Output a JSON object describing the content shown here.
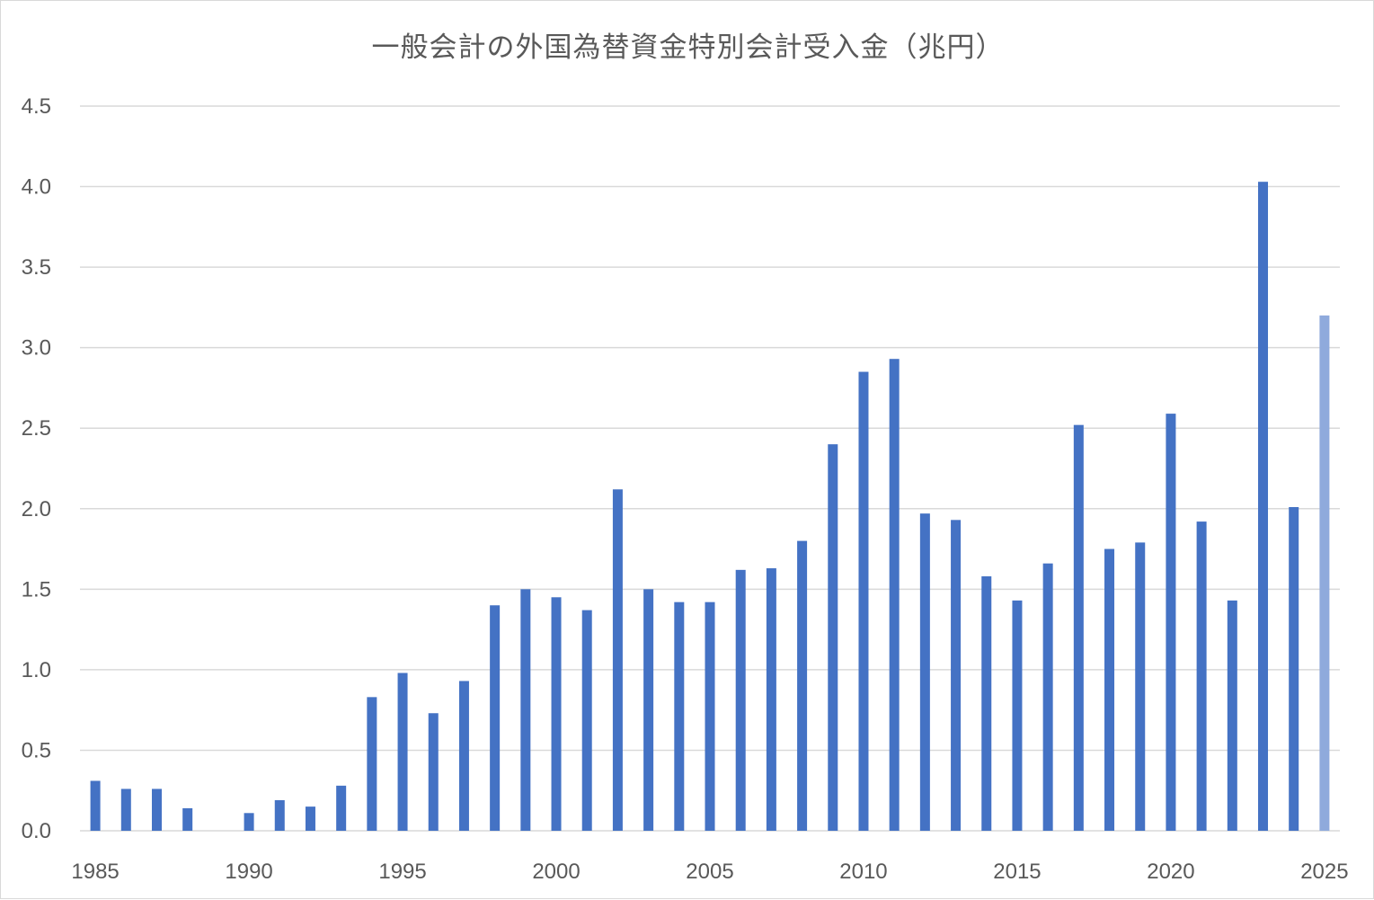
{
  "chart_data": {
    "type": "bar",
    "title": "一般会計の外国為替資金特別会計受入金（兆円）",
    "xlabel": "",
    "ylabel": "",
    "ylim": [
      0,
      4.5
    ],
    "y_ticks": [
      "0.0",
      "0.5",
      "1.0",
      "1.5",
      "2.0",
      "2.5",
      "3.0",
      "3.5",
      "4.0",
      "4.5"
    ],
    "x_tick_labels": [
      "1985",
      "1990",
      "1995",
      "2000",
      "2005",
      "2010",
      "2015",
      "2020",
      "2025"
    ],
    "grid": true,
    "legend": "none",
    "categories": [
      1985,
      1986,
      1987,
      1988,
      1989,
      1990,
      1991,
      1992,
      1993,
      1994,
      1995,
      1996,
      1997,
      1998,
      1999,
      2000,
      2001,
      2002,
      2003,
      2004,
      2005,
      2006,
      2007,
      2008,
      2009,
      2010,
      2011,
      2012,
      2013,
      2014,
      2015,
      2016,
      2017,
      2018,
      2019,
      2020,
      2021,
      2022,
      2023,
      2024,
      2025
    ],
    "values": [
      0.31,
      0.26,
      0.26,
      0.14,
      0.0,
      0.11,
      0.19,
      0.15,
      0.28,
      0.83,
      0.98,
      0.73,
      0.93,
      1.4,
      1.5,
      1.45,
      1.37,
      2.12,
      1.5,
      1.42,
      1.42,
      1.62,
      1.63,
      1.8,
      2.4,
      2.85,
      2.93,
      1.97,
      1.93,
      1.58,
      1.43,
      1.66,
      2.52,
      1.75,
      1.79,
      2.59,
      1.92,
      1.43,
      4.03,
      2.01,
      3.2
    ],
    "colors": {
      "bar": "#4472c4",
      "bar_highlight": "#8faadc",
      "grid": "#d9d9d9",
      "text": "#595959"
    },
    "highlight_last": true
  }
}
